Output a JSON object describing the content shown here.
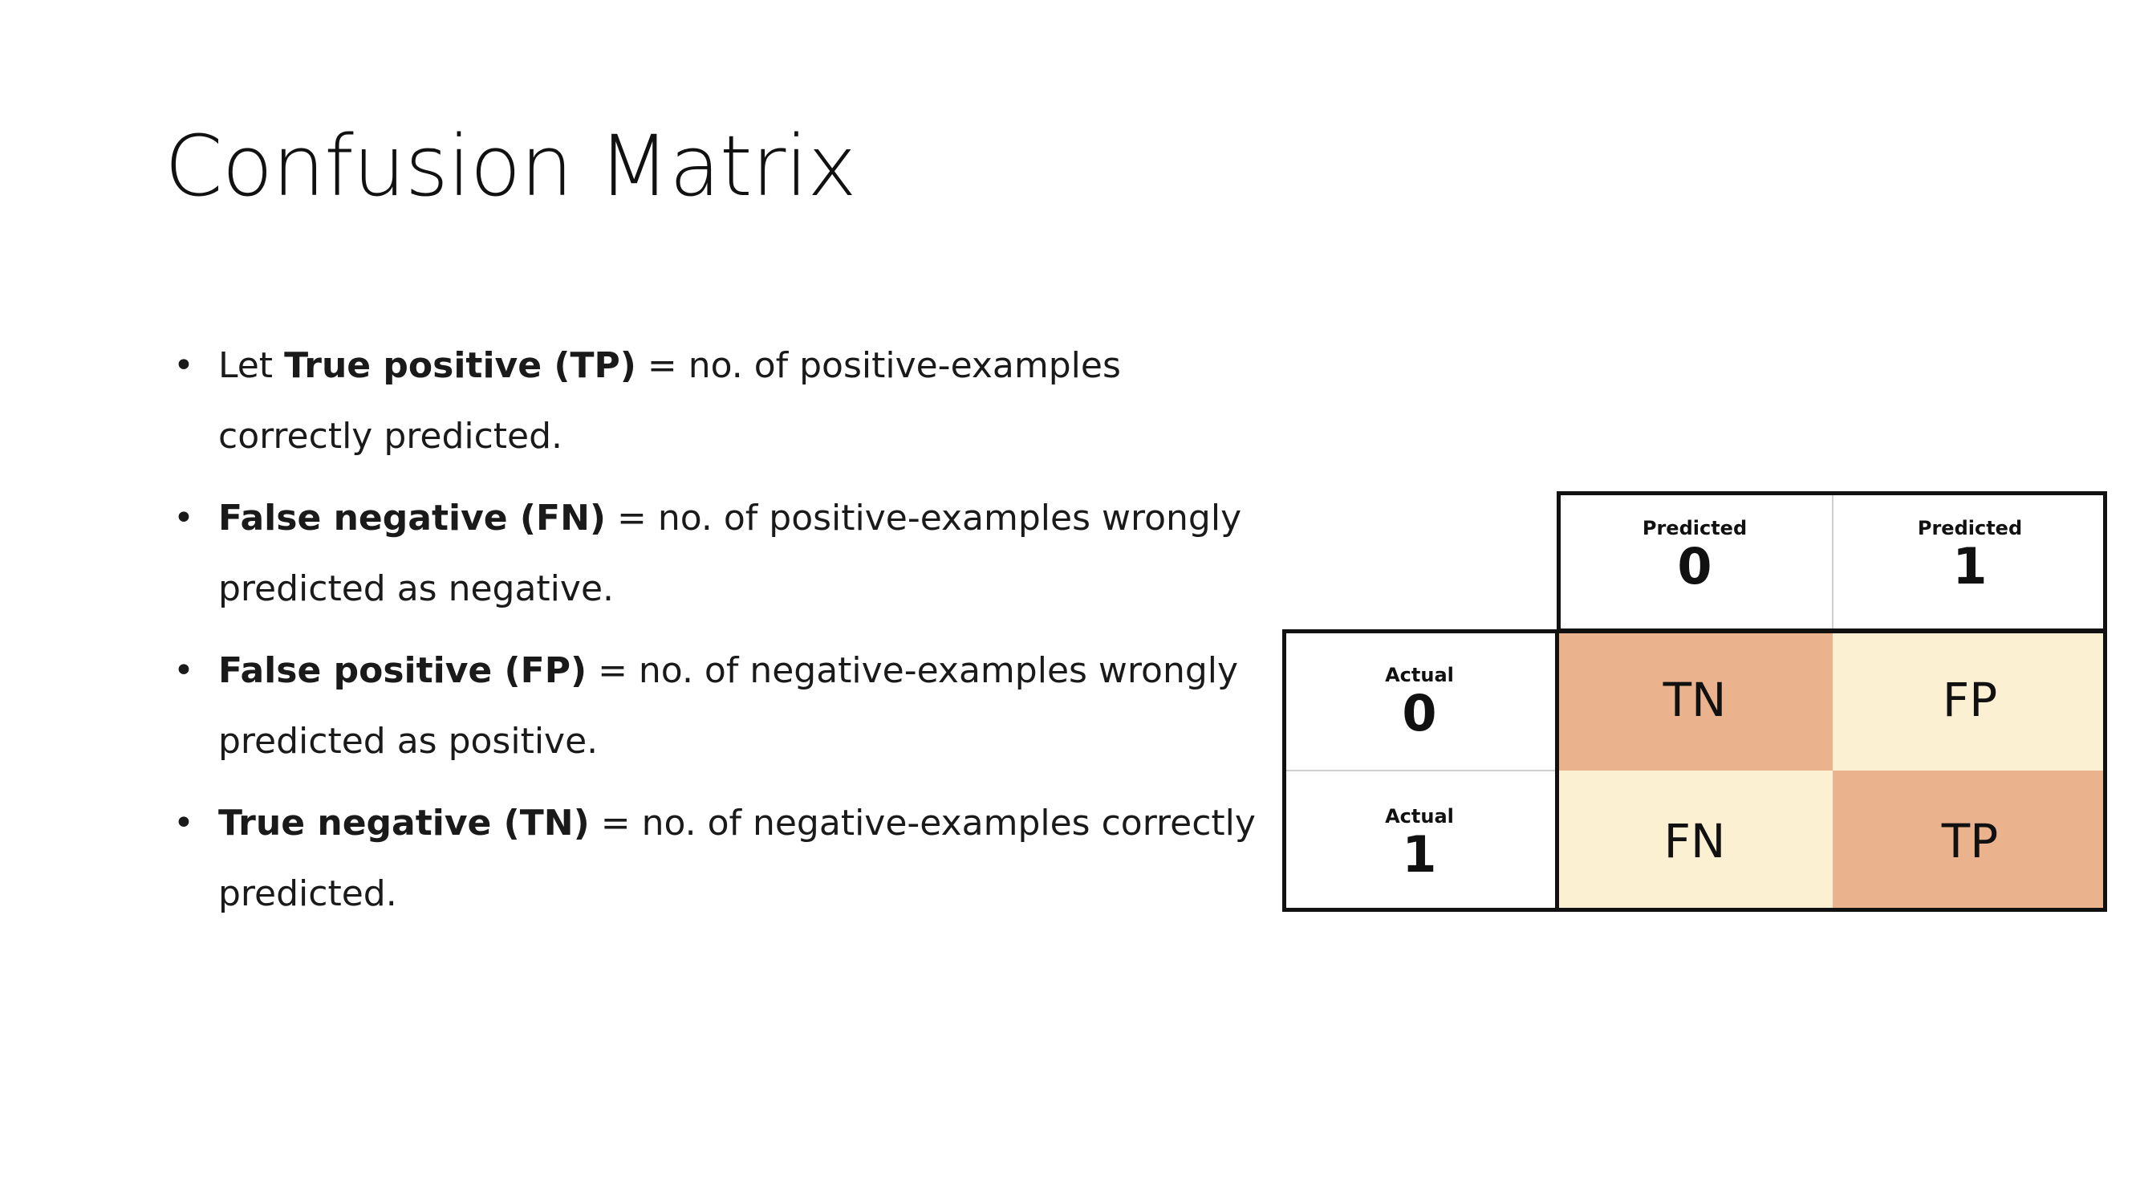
{
  "title": "Confusion Matrix",
  "bullets": [
    {
      "prefix": "Let ",
      "term": "True positive (TP)",
      "text": " = no. of positive-examples correctly predicted."
    },
    {
      "prefix": "",
      "term": "False negative (FN)",
      "text": " = no. of positive-examples wrongly predicted as negative."
    },
    {
      "prefix": "",
      "term": "False positive (FP)",
      "text": " = no. of negative-examples wrongly predicted as positive."
    },
    {
      "prefix": "",
      "term": "True negative (TN)",
      "text": " = no. of negative-examples correctly predicted."
    }
  ],
  "matrix": {
    "col_headers": [
      {
        "label": "Predicted",
        "value": "0"
      },
      {
        "label": "Predicted",
        "value": "1"
      }
    ],
    "row_headers": [
      {
        "label": "Actual",
        "value": "0"
      },
      {
        "label": "Actual",
        "value": "1"
      }
    ],
    "cells": [
      [
        {
          "code": "TN"
        },
        {
          "code": "FP"
        }
      ],
      [
        {
          "code": "FN"
        },
        {
          "code": "TP"
        }
      ]
    ],
    "colors": {
      "diagonal": "#ebb28e",
      "off_diagonal": "#fcf0d3"
    }
  }
}
